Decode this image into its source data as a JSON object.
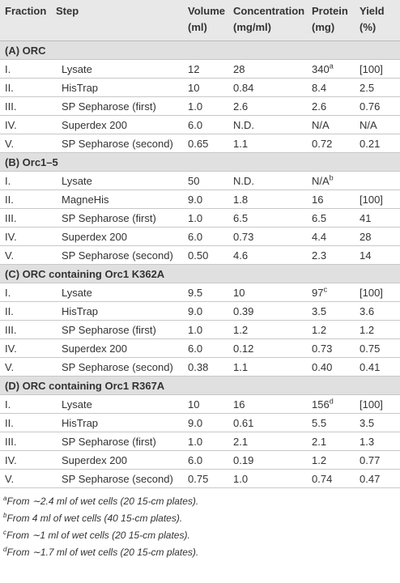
{
  "header": [
    "Fraction",
    "Step",
    "Volume (ml)",
    "Concentration (mg/ml)",
    "Protein (mg)",
    "Yield (%)"
  ],
  "header_lines": [
    [
      "Fraction"
    ],
    [
      "Step"
    ],
    [
      "Volume",
      "(ml)"
    ],
    [
      "Concentration",
      "(mg/ml)"
    ],
    [
      "Protein",
      "(mg)"
    ],
    [
      "Yield",
      "(%)"
    ]
  ],
  "sections": [
    {
      "title": "(A) ORC",
      "rows": [
        {
          "fraction": "I.",
          "step": "Lysate",
          "volume": "12",
          "concentration": "28",
          "protein": "340",
          "protein_note": "a",
          "yield": "[100]"
        },
        {
          "fraction": "II.",
          "step": "HisTrap",
          "volume": "10",
          "concentration": "0.84",
          "protein": "8.4",
          "yield": "2.5"
        },
        {
          "fraction": "III.",
          "step": "SP Sepharose (first)",
          "volume": "1.0",
          "concentration": "2.6",
          "protein": "2.6",
          "yield": "0.76"
        },
        {
          "fraction": "IV.",
          "step": "Superdex 200",
          "volume": "6.0",
          "concentration": "N.D.",
          "protein": "N/A",
          "yield": "N/A"
        },
        {
          "fraction": "V.",
          "step": "SP Sepharose (second)",
          "volume": "0.65",
          "concentration": "1.1",
          "protein": "0.72",
          "yield": "0.21"
        }
      ]
    },
    {
      "title": "(B) Orc1–5",
      "rows": [
        {
          "fraction": "I.",
          "step": "Lysate",
          "volume": "50",
          "concentration": "N.D.",
          "protein": "N/A",
          "protein_note": "b"
        },
        {
          "fraction": "II.",
          "step": "MagneHis",
          "volume": "9.0",
          "concentration": "1.8",
          "protein": "16",
          "yield": "[100]"
        },
        {
          "fraction": "III.",
          "step": "SP Sepharose (first)",
          "volume": "1.0",
          "concentration": "6.5",
          "protein": "6.5",
          "yield": "41"
        },
        {
          "fraction": "IV.",
          "step": "Superdex 200",
          "volume": "6.0",
          "concentration": "0.73",
          "protein": "4.4",
          "yield": "28"
        },
        {
          "fraction": "V.",
          "step": "SP Sepharose (second)",
          "volume": "0.50",
          "concentration": "4.6",
          "protein": "2.3",
          "yield": "14"
        }
      ]
    },
    {
      "title": "(C) ORC containing Orc1 K362A",
      "rows": [
        {
          "fraction": "I.",
          "step": "Lysate",
          "volume": "9.5",
          "concentration": "10",
          "protein": "97",
          "protein_note": "c",
          "yield": "[100]"
        },
        {
          "fraction": "II.",
          "step": "HisTrap",
          "volume": "9.0",
          "concentration": "0.39",
          "protein": "3.5",
          "yield": "3.6"
        },
        {
          "fraction": "III.",
          "step": "SP Sepharose (first)",
          "volume": "1.0",
          "concentration": "1.2",
          "protein": "1.2",
          "yield": "1.2"
        },
        {
          "fraction": "IV.",
          "step": "Superdex 200",
          "volume": "6.0",
          "concentration": "0.12",
          "protein": "0.73",
          "yield": "0.75"
        },
        {
          "fraction": "V.",
          "step": "SP Sepharose (second)",
          "volume": "0.38",
          "concentration": "1.1",
          "protein": "0.40",
          "yield": "0.41"
        }
      ]
    },
    {
      "title": "(D) ORC containing Orc1 R367A",
      "rows": [
        {
          "fraction": "I.",
          "step": "Lysate",
          "volume": "10",
          "concentration": "16",
          "protein": "156",
          "protein_note": "d",
          "yield": "[100]"
        },
        {
          "fraction": "II.",
          "step": "HisTrap",
          "volume": "9.0",
          "concentration": "0.61",
          "protein": "5.5",
          "yield": "3.5"
        },
        {
          "fraction": "III.",
          "step": "SP Sepharose (first)",
          "volume": "1.0",
          "concentration": "2.1",
          "protein": "2.1",
          "yield": "1.3"
        },
        {
          "fraction": "IV.",
          "step": "Superdex 200",
          "volume": "6.0",
          "concentration": "0.19",
          "protein": "1.2",
          "yield": "0.77"
        },
        {
          "fraction": "V.",
          "step": "SP Sepharose (second)",
          "volume": "0.75",
          "concentration": "1.0",
          "protein": "0.74",
          "yield": "0.47"
        }
      ]
    }
  ],
  "footnotes": [
    {
      "mark": "a",
      "text": "From ∼2.4 ml of wet cells (20 15-cm plates)."
    },
    {
      "mark": "b",
      "text": "From 4 ml of wet cells (40 15-cm plates)."
    },
    {
      "mark": "c",
      "text": "From ∼1 ml of wet cells (20 15-cm plates)."
    },
    {
      "mark": "d",
      "text": "From ∼1.7 ml of wet cells (20 15-cm plates)."
    }
  ]
}
